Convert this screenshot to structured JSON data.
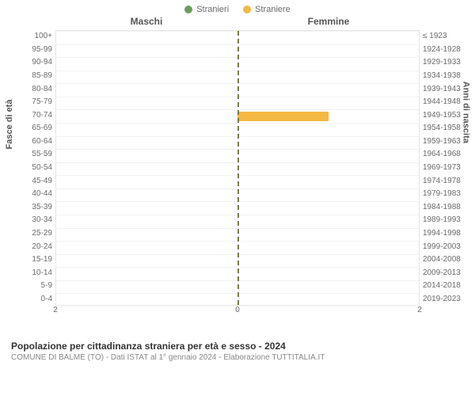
{
  "legend": {
    "male": {
      "label": "Stranieri",
      "color": "#6a9c5a"
    },
    "female": {
      "label": "Straniere",
      "color": "#f4b942"
    }
  },
  "headers": {
    "left": "Maschi",
    "right": "Femmine"
  },
  "axis_labels": {
    "left": "Fasce di età",
    "right": "Anni di nascita"
  },
  "age_groups": [
    "100+",
    "95-99",
    "90-94",
    "85-89",
    "80-84",
    "75-79",
    "70-74",
    "65-69",
    "60-64",
    "55-59",
    "50-54",
    "45-49",
    "40-44",
    "35-39",
    "30-34",
    "25-29",
    "20-24",
    "15-19",
    "10-14",
    "5-9",
    "0-4"
  ],
  "birth_years": [
    "≤ 1923",
    "1924-1928",
    "1929-1933",
    "1934-1938",
    "1939-1943",
    "1944-1948",
    "1949-1953",
    "1954-1958",
    "1959-1963",
    "1964-1968",
    "1969-1973",
    "1974-1978",
    "1979-1983",
    "1984-1988",
    "1989-1993",
    "1994-1998",
    "1999-2003",
    "2004-2008",
    "2009-2013",
    "2014-2018",
    "2019-2023"
  ],
  "x_ticks": {
    "left": [
      "2"
    ],
    "center": "0",
    "right": [
      "2"
    ],
    "max": 2
  },
  "bars": {
    "male": [
      0,
      0,
      0,
      0,
      0,
      0,
      0,
      0,
      0,
      0,
      0,
      0,
      0,
      0,
      0,
      0,
      0,
      0,
      0,
      0,
      0
    ],
    "female": [
      0,
      0,
      0,
      0,
      0,
      0,
      1,
      0,
      0,
      0,
      0,
      0,
      0,
      0,
      0,
      0,
      0,
      0,
      0,
      0,
      0
    ]
  },
  "grid_color": "#f2f2f2",
  "center_line_color": "#7a7a4a",
  "footer": {
    "title": "Popolazione per cittadinanza straniera per età e sesso - 2024",
    "subtitle": "COMUNE DI BALME (TO) - Dati ISTAT al 1° gennaio 2024 - Elaborazione TUTTITALIA.IT"
  }
}
